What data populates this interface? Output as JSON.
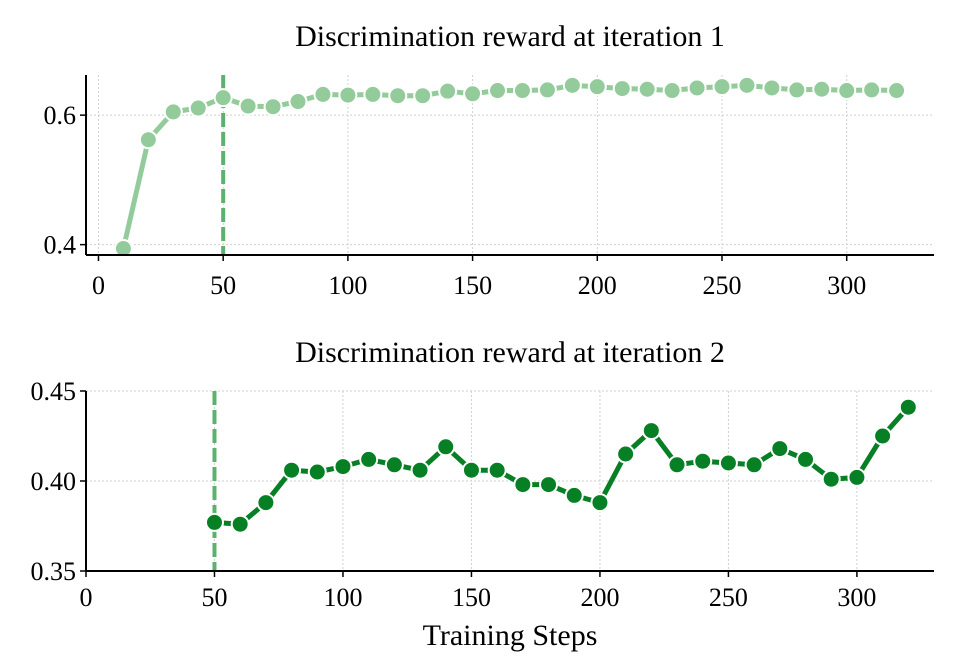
{
  "chart_data": [
    {
      "type": "line",
      "title": "Discrimination reward at iteration 1",
      "xlabel": "",
      "ylabel": "",
      "xlim": [
        -5,
        335
      ],
      "ylim": [
        0.384,
        0.662
      ],
      "xticks": [
        0,
        50,
        100,
        150,
        200,
        250,
        300
      ],
      "yticks": [
        0.4,
        0.6
      ],
      "ytick_labels": [
        "0.4",
        "0.6"
      ],
      "grid": true,
      "vline_x": 50,
      "color": "#93cb9b",
      "series": [
        {
          "name": "",
          "x": [
            10,
            20,
            30,
            40,
            50,
            60,
            70,
            80,
            90,
            100,
            110,
            120,
            130,
            140,
            150,
            160,
            170,
            180,
            190,
            200,
            210,
            220,
            230,
            240,
            250,
            260,
            270,
            280,
            290,
            300,
            310,
            320
          ],
          "y": [
            0.394,
            0.562,
            0.605,
            0.611,
            0.627,
            0.614,
            0.613,
            0.621,
            0.632,
            0.631,
            0.632,
            0.63,
            0.63,
            0.637,
            0.633,
            0.638,
            0.638,
            0.639,
            0.646,
            0.644,
            0.641,
            0.64,
            0.638,
            0.642,
            0.644,
            0.646,
            0.642,
            0.639,
            0.64,
            0.638,
            0.639,
            0.638
          ]
        }
      ]
    },
    {
      "type": "line",
      "title": "Discrimination reward at iteration 2",
      "xlabel": "Training Steps",
      "ylabel": "",
      "xlim": [
        0,
        330
      ],
      "ylim": [
        0.35,
        0.45
      ],
      "xticks": [
        0,
        50,
        100,
        150,
        200,
        250,
        300
      ],
      "yticks": [
        0.35,
        0.4,
        0.45
      ],
      "ytick_labels": [
        "0.35",
        "0.40",
        "0.45"
      ],
      "grid": true,
      "vline_x": 50,
      "color": "#077f25",
      "series": [
        {
          "name": "",
          "x": [
            50,
            60,
            70,
            80,
            90,
            100,
            110,
            120,
            130,
            140,
            150,
            160,
            170,
            180,
            190,
            200,
            210,
            220,
            230,
            240,
            250,
            260,
            270,
            280,
            290,
            300,
            310,
            320
          ],
          "y": [
            0.377,
            0.376,
            0.388,
            0.406,
            0.405,
            0.408,
            0.412,
            0.409,
            0.406,
            0.419,
            0.406,
            0.406,
            0.398,
            0.398,
            0.392,
            0.388,
            0.415,
            0.428,
            0.409,
            0.411,
            0.41,
            0.409,
            0.418,
            0.412,
            0.401,
            0.402,
            0.425,
            0.441
          ]
        }
      ]
    }
  ]
}
